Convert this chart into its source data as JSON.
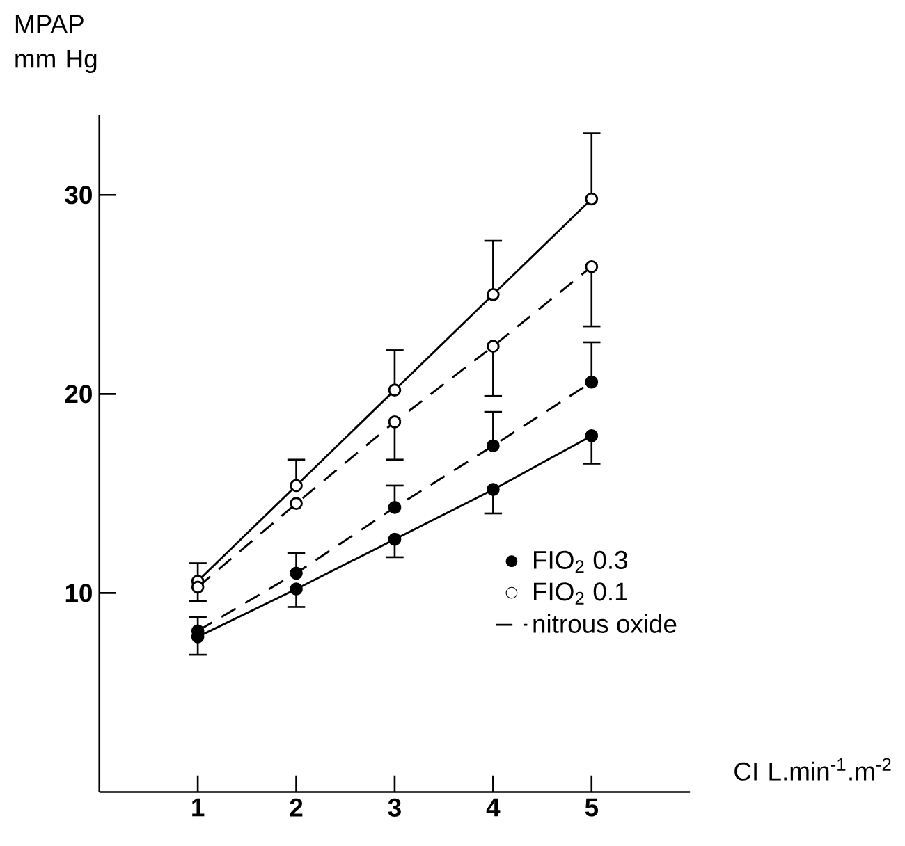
{
  "chart_data": {
    "type": "line",
    "xlabel": "CI L.min$^{-1}$.m$^{-2}$",
    "ylabel": "MPAP mm Hg",
    "x": [
      1,
      2,
      3,
      4,
      5
    ],
    "xlim": [
      0,
      6
    ],
    "xticks": [
      1,
      2,
      3,
      4,
      5
    ],
    "ylim": [
      0,
      34
    ],
    "yticks": [
      10,
      20,
      30
    ],
    "legend": "bottom right",
    "grid": false,
    "series": [
      {
        "name": "FIO$_{2}$ 0.3",
        "color": "#000000",
        "marker": "circle",
        "line_style": "solid",
        "values": [
          7.8,
          10.2,
          12.7,
          15.2,
          17.9
        ],
        "errors": [
          [
            6.9,
            7.8
          ],
          [
            9.3,
            10.2
          ],
          [
            11.8,
            12.7
          ],
          [
            14.0,
            15.2
          ],
          [
            16.5,
            17.9
          ]
        ]
      },
      {
        "name": "FIO$_{2}$ 0.1",
        "color": "#000000",
        "marker": "open circle",
        "line_style": "solid",
        "values": [
          10.6,
          15.4,
          20.2,
          25.0,
          29.8
        ],
        "errors": [
          [
            10.6,
            11.5
          ],
          [
            15.4,
            16.7
          ],
          [
            20.2,
            22.2
          ],
          [
            25.0,
            27.7
          ],
          [
            29.8,
            33.1
          ]
        ]
      },
      {
        "color": "#000000",
        "marker": "circle",
        "line_style": "dashed",
        "values": [
          8.1,
          11.0,
          14.3,
          17.4,
          20.6
        ],
        "errors": [
          [
            8.1,
            8.8
          ],
          [
            11.0,
            12.0
          ],
          [
            14.3,
            15.4
          ],
          [
            17.4,
            19.1
          ],
          [
            20.6,
            22.6
          ]
        ]
      },
      {
        "color": "#000000",
        "marker": "open circle",
        "line_style": "dashed",
        "values": [
          10.3,
          14.5,
          18.6,
          22.4,
          26.4
        ],
        "errors": [
          [
            9.6,
            10.3
          ],
          null,
          [
            16.7,
            18.6
          ],
          [
            19.9,
            22.4
          ],
          [
            23.4,
            26.4
          ]
        ]
      }
    ],
    "annotations": [
      "nitrous oxide"
    ]
  }
}
